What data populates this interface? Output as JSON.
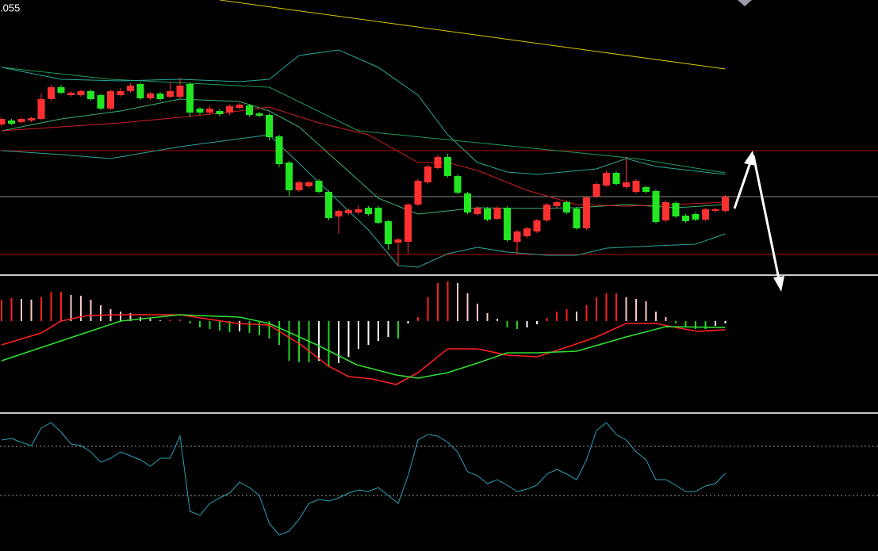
{
  "price_label": ".055",
  "chart_data": [
    {
      "type": "candlestick",
      "xlim": [
        -0.16,
        88.4
      ],
      "ylim": [
        0,
        345
      ],
      "up_color": "#ff3030",
      "down_color": "#22e622",
      "open": [
        188,
        193,
        191,
        193,
        195,
        220,
        235,
        225,
        225,
        230,
        225,
        208,
        225,
        230,
        239,
        221,
        227,
        223,
        223,
        239,
        208,
        203,
        205,
        203,
        209,
        212,
        202,
        200,
        173,
        140,
        105,
        110,
        117,
        103,
        72,
        76,
        77,
        83,
        83,
        66,
        39,
        40,
        87,
        115,
        133,
        147,
        123,
        101,
        75,
        82,
        69,
        83,
        40,
        47,
        53,
        67,
        85,
        90,
        82,
        57,
        97,
        111,
        127,
        109,
        103,
        109,
        104,
        67,
        89,
        73,
        75,
        68,
        79,
        79
      ],
      "high": [
        197,
        195,
        197,
        198,
        227,
        238,
        238,
        230,
        232,
        232,
        227,
        232,
        234,
        240,
        241,
        229,
        229,
        242,
        247,
        241,
        210,
        211,
        208,
        213,
        215,
        214,
        204,
        202,
        175,
        142,
        117,
        117,
        119,
        105,
        81,
        82,
        86,
        85,
        85,
        68,
        45,
        89,
        119,
        137,
        150,
        151,
        125,
        103,
        85,
        84,
        85,
        85,
        55,
        59,
        69,
        89,
        92,
        92,
        84,
        98,
        115,
        130,
        129,
        147,
        119,
        111,
        106,
        92,
        91,
        75,
        77,
        83,
        83,
        99
      ],
      "low": [
        186,
        187,
        189,
        191,
        193,
        218,
        226,
        223,
        223,
        218,
        206,
        206,
        223,
        228,
        219,
        219,
        218,
        221,
        221,
        198,
        200,
        200,
        198,
        200,
        207,
        198,
        197,
        168,
        134,
        98,
        103,
        108,
        101,
        67,
        50,
        74,
        75,
        73,
        62,
        30,
        9,
        25,
        85,
        113,
        131,
        121,
        100,
        75,
        73,
        66,
        67,
        40,
        25,
        45,
        51,
        65,
        83,
        75,
        55,
        55,
        95,
        109,
        111,
        107,
        101,
        101,
        63,
        65,
        70,
        64,
        66,
        66,
        77,
        77
      ],
      "close": [
        195,
        189,
        195,
        196,
        220,
        235,
        228,
        228,
        230,
        220,
        208,
        230,
        230,
        237,
        221,
        227,
        220,
        230,
        237,
        203,
        203,
        208,
        201,
        211,
        213,
        200,
        199,
        172,
        138,
        105,
        115,
        115,
        103,
        70,
        79,
        80,
        81,
        75,
        64,
        37,
        43,
        87,
        117,
        135,
        147,
        123,
        102,
        77,
        83,
        68,
        83,
        42,
        53,
        57,
        67,
        87,
        90,
        77,
        57,
        96,
        113,
        127,
        113,
        115,
        117,
        103,
        65,
        90,
        72,
        66,
        68,
        81,
        81,
        97
      ],
      "series": [
        {
          "color": "#d8c800",
          "x": [
            22,
            73
          ],
          "values": [
            345,
            258
          ]
        },
        {
          "color": "#1f9a5a",
          "x": [
            0,
            11,
            27,
            36,
            48,
            64,
            73
          ],
          "values": [
            260,
            245,
            235,
            180,
            165,
            145,
            127
          ]
        },
        {
          "color": "#2aa59a",
          "x": [
            0,
            6,
            12,
            18,
            24,
            27,
            30,
            34,
            38,
            42,
            45,
            48,
            51,
            54,
            60,
            63,
            66,
            73
          ],
          "values": [
            260,
            245,
            243,
            245,
            242,
            245,
            275,
            282,
            260,
            225,
            175,
            140,
            128,
            125,
            132,
            145,
            135,
            125
          ]
        },
        {
          "color": "#3cb371",
          "x": [
            0,
            6,
            12,
            18,
            24,
            27,
            30,
            34,
            38,
            42,
            48,
            53,
            58,
            63,
            68,
            73
          ],
          "values": [
            180,
            195,
            205,
            220,
            217,
            205,
            185,
            140,
            95,
            75,
            83,
            82,
            83,
            87,
            83,
            87
          ]
        },
        {
          "color": "#d02020",
          "x": [
            0,
            6,
            12,
            18,
            24,
            27,
            32,
            37,
            42,
            45,
            48,
            53,
            58,
            63,
            68,
            73
          ],
          "values": [
            180,
            185,
            190,
            197,
            205,
            210,
            190,
            175,
            140,
            140,
            130,
            105,
            87,
            85,
            87,
            90
          ]
        },
        {
          "color": "#2aa59a",
          "x": [
            0,
            6,
            11,
            18,
            24,
            27,
            32,
            37,
            40,
            42,
            45,
            48,
            51,
            55,
            58,
            61,
            66,
            70,
            73
          ],
          "values": [
            155,
            150,
            145,
            160,
            170,
            175,
            115,
            55,
            10,
            8,
            25,
            33,
            27,
            23,
            23,
            32,
            35,
            37,
            50
          ]
        }
      ],
      "hlines": [
        155,
        97,
        24
      ],
      "hline_colors": [
        "#b00000",
        "#888888",
        "#b00000"
      ]
    },
    {
      "type": "macd",
      "xlim": [
        -0.16,
        88.4
      ],
      "ylim": [
        -116,
        58
      ],
      "bar_colors": {
        "up_rising": "#ff2020",
        "up_falling": "#ffc8c8",
        "down_falling": "#22d022",
        "down_rising": "#ffffff"
      },
      "values": [
        27,
        29,
        28,
        27,
        30,
        37,
        37,
        33,
        32,
        27,
        20,
        15,
        12,
        10,
        5,
        3,
        1,
        2,
        2,
        -3,
        -8,
        -10,
        -12,
        -14,
        -13,
        -15,
        -18,
        -22,
        -30,
        -50,
        -52,
        -52,
        -50,
        -58,
        -53,
        -45,
        -35,
        -30,
        -25,
        -20,
        -22,
        -3,
        5,
        30,
        48,
        50,
        48,
        35,
        22,
        10,
        3,
        -8,
        -10,
        -8,
        -4,
        4,
        12,
        15,
        12,
        20,
        30,
        35,
        35,
        30,
        28,
        25,
        12,
        5,
        -3,
        -8,
        -10,
        -10,
        -6,
        -3
      ],
      "series": [
        {
          "color": "#ff2020",
          "x": [
            0,
            4,
            6,
            8.6,
            12,
            18,
            20.6,
            23.8,
            27,
            30.2,
            33,
            35,
            37.4,
            39.8,
            42,
            45,
            48,
            51,
            54,
            57,
            60,
            63,
            66,
            68,
            70.2,
            73
          ],
          "values": [
            -30,
            -15,
            0,
            7,
            8,
            8,
            3,
            -3,
            -5,
            -30,
            -57,
            -70,
            -73,
            -80,
            -65,
            -35,
            -35,
            -43,
            -45,
            -33,
            -20,
            -3,
            -3,
            -8,
            -13,
            -11
          ]
        },
        {
          "color": "#30e030",
          "x": [
            0,
            6,
            12,
            18,
            24,
            27,
            31.8,
            35.8,
            39.8,
            42,
            45,
            48,
            51,
            54,
            58,
            63,
            67,
            73
          ],
          "values": [
            -50,
            -25,
            0,
            8,
            5,
            -3,
            -30,
            -55,
            -68,
            -72,
            -65,
            -53,
            -40,
            -40,
            -38,
            -20,
            -7,
            -8
          ]
        }
      ]
    },
    {
      "type": "line",
      "xlim": [
        -0.16,
        88.4
      ],
      "ylim": [
        0,
        174
      ],
      "color": "#2aa0b8",
      "values": [
        140,
        142,
        137,
        133,
        155,
        162,
        150,
        135,
        133,
        125,
        112,
        117,
        125,
        120,
        115,
        107,
        117,
        117,
        145,
        50,
        45,
        60,
        67,
        73,
        87,
        80,
        70,
        35,
        20,
        25,
        40,
        60,
        65,
        63,
        67,
        73,
        77,
        75,
        80,
        70,
        60,
        95,
        140,
        147,
        145,
        137,
        125,
        100,
        95,
        85,
        90,
        83,
        75,
        78,
        83,
        97,
        103,
        97,
        90,
        115,
        152,
        162,
        147,
        140,
        125,
        115,
        90,
        90,
        83,
        75,
        75,
        82,
        85,
        98
      ],
      "hlines": [
        132,
        70
      ],
      "hline_color": "#9a9a9a"
    }
  ]
}
